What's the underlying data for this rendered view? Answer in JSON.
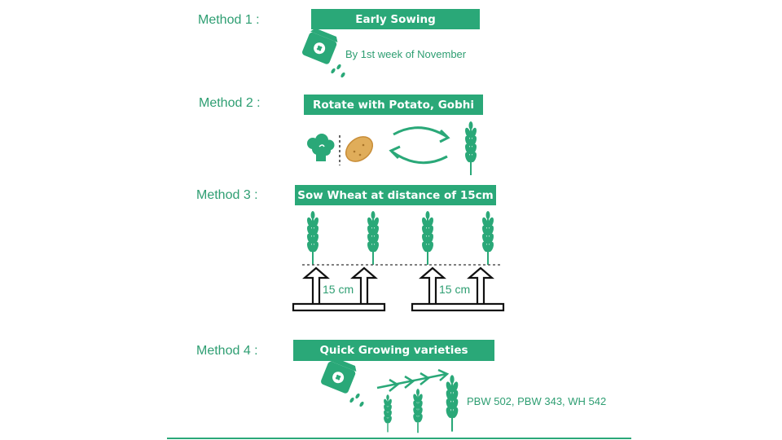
{
  "colors": {
    "green": "#2aa878",
    "text_green": "#2e9e72",
    "potato": "#e0ad5a",
    "black": "#111111"
  },
  "methods": [
    {
      "label": "Method 1 :",
      "title": "Early Sowing",
      "note": "By 1st week of November"
    },
    {
      "label": "Method 2 :",
      "title": "Rotate with Potato, Gobhi"
    },
    {
      "label": "Method 3 :",
      "title": "Sow Wheat at distance of 15cm",
      "distance_labels": [
        "15 cm",
        "15 cm"
      ]
    },
    {
      "label": "Method 4 :",
      "title": "Quick Growing varieties",
      "note": "PBW 502, PBW 343, WH 542"
    }
  ],
  "icons": [
    "seed-packet-icon",
    "cauliflower-icon",
    "potato-icon",
    "cycle-arrows-icon",
    "wheat-icon",
    "up-arrow-icon",
    "growth-arrow-icon"
  ]
}
